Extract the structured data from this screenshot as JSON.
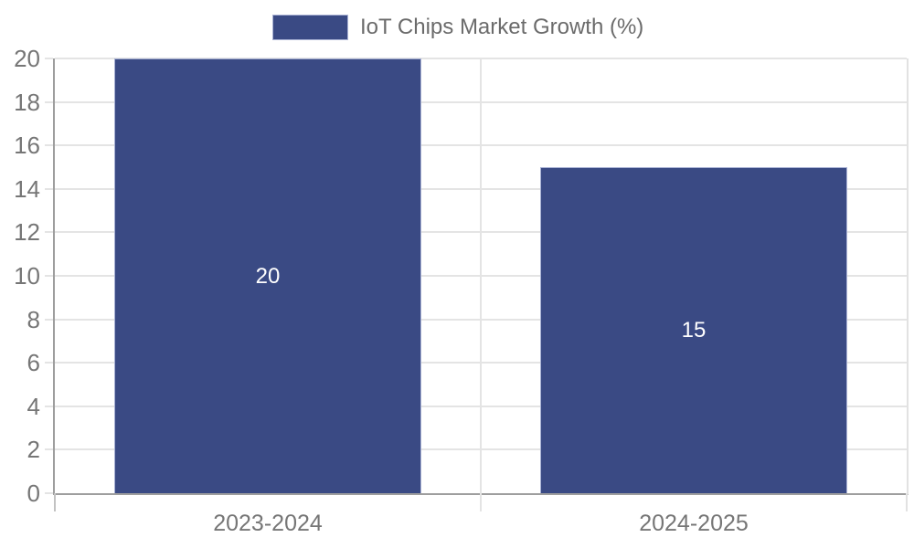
{
  "chart_data": {
    "type": "bar",
    "title": "IoT Chips Market Growth (%)",
    "categories": [
      "2023-2024",
      "2024-2025"
    ],
    "values": [
      20,
      15
    ],
    "bar_value_labels": [
      "20",
      "15"
    ],
    "xlabel": "",
    "ylabel": "",
    "ylim": [
      0,
      20
    ],
    "yticks": [
      0,
      2,
      4,
      6,
      8,
      10,
      12,
      14,
      16,
      18,
      20
    ],
    "grid": "horizontal gridlines + vertical category separator",
    "legend_position": "top-center",
    "legend_entries": [
      "IoT Chips Market Growth (%)"
    ]
  },
  "colors": {
    "bar_fill": "#3A4A84",
    "bar_edge": "#A9B2D4",
    "bar_value_text": "#FFFFFF",
    "gridline": "#E4E4E4",
    "axis_spine": "#9E9E9E",
    "right_border": "#E2E2E2",
    "tick_label_text": "#767676",
    "legend_text": "#6B6B6B",
    "background": "#FFFFFF"
  }
}
